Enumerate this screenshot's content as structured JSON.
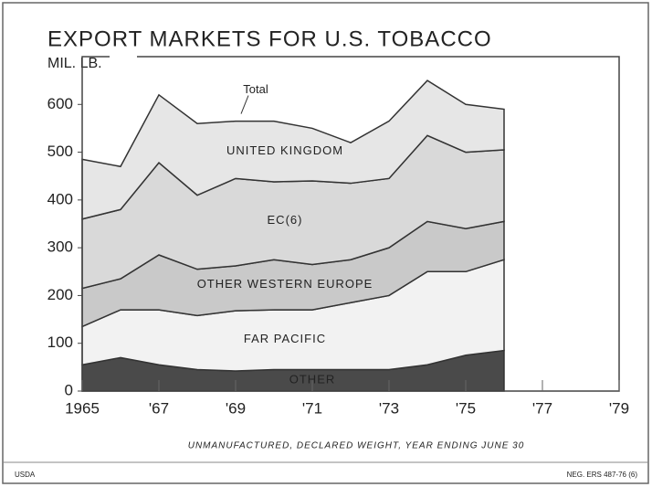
{
  "chart_data": {
    "type": "stacked_area",
    "title": "EXPORT MARKETS FOR U.S. TOBACCO",
    "ylabel": "MIL. LB.",
    "annotation": "Total",
    "footnote": "UNMANUFACTURED, DECLARED WEIGHT, YEAR ENDING JUNE 30",
    "source": "USDA",
    "credit": "NEG. ERS 487-76 (6)",
    "x": [
      1965,
      1966,
      1967,
      1968,
      1969,
      1970,
      1971,
      1972,
      1973,
      1974,
      1975,
      1976
    ],
    "series": [
      {
        "name": "OTHER",
        "color": "#4a4a4a",
        "values": [
          55,
          70,
          55,
          45,
          42,
          45,
          45,
          45,
          45,
          55,
          75,
          85
        ]
      },
      {
        "name": "FAR PACIFIC",
        "color": "#f2f2f2",
        "values": [
          80,
          100,
          115,
          113,
          126,
          125,
          125,
          140,
          155,
          195,
          175,
          190
        ]
      },
      {
        "name": "OTHER WESTERN EUROPE",
        "color": "#c9c9c9",
        "values": [
          80,
          65,
          115,
          97,
          94,
          105,
          95,
          90,
          100,
          105,
          90,
          80
        ]
      },
      {
        "name": "EC(6)",
        "color": "#d9d9d9",
        "values": [
          145,
          145,
          193,
          155,
          183,
          163,
          175,
          160,
          145,
          180,
          160,
          150
        ]
      },
      {
        "name": "UNITED KINGDOM",
        "color": "#e6e6e6",
        "values": [
          125,
          90,
          142,
          150,
          120,
          127,
          110,
          85,
          120,
          115,
          100,
          85
        ]
      }
    ],
    "xlim": [
      1965,
      1979
    ],
    "xticks": [
      1965,
      {
        "value": 1967,
        "label": "'67"
      },
      {
        "value": 1969,
        "label": "'69"
      },
      {
        "value": 1971,
        "label": "'71"
      },
      {
        "value": 1973,
        "label": "'73"
      },
      {
        "value": 1975,
        "label": "'75"
      },
      {
        "value": 1977,
        "label": "'77"
      },
      {
        "value": 1979,
        "label": "'79"
      }
    ],
    "ylim": [
      0,
      700
    ],
    "yticks": [
      0,
      100,
      200,
      300,
      400,
      500,
      600
    ]
  }
}
